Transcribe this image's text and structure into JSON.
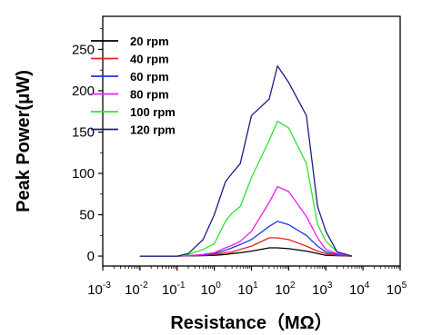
{
  "chart_data": {
    "type": "line",
    "xlabel": "Resistance（MΩ）",
    "ylabel": "Peak Power(μW)",
    "xscale": "log",
    "xlim": [
      0.001,
      100000
    ],
    "ylim": [
      -12,
      290
    ],
    "x_ticks": [
      {
        "base": "10",
        "exp": "-3",
        "value": 0.001
      },
      {
        "base": "10",
        "exp": "-2",
        "value": 0.01
      },
      {
        "base": "10",
        "exp": "-1",
        "value": 0.1
      },
      {
        "base": "10",
        "exp": "0",
        "value": 1
      },
      {
        "base": "10",
        "exp": "1",
        "value": 10
      },
      {
        "base": "10",
        "exp": "2",
        "value": 100
      },
      {
        "base": "10",
        "exp": "3",
        "value": 1000
      },
      {
        "base": "10",
        "exp": "4",
        "value": 10000
      },
      {
        "base": "10",
        "exp": "5",
        "value": 100000
      }
    ],
    "y_ticks": [
      0,
      50,
      100,
      150,
      200,
      250
    ],
    "grid": false,
    "legend_position": "top-left",
    "series": [
      {
        "name": "20 rpm",
        "color": "#000000",
        "x": [
          0.01,
          0.05,
          0.1,
          0.2,
          0.5,
          1,
          2,
          3,
          5,
          10,
          30,
          50,
          100,
          300,
          600,
          1000,
          2000,
          5000
        ],
        "y": [
          0,
          0,
          0,
          0.2,
          0.5,
          1,
          2,
          3,
          4,
          6,
          10,
          10,
          9,
          6,
          3,
          1,
          0.5,
          0
        ]
      },
      {
        "name": "40 rpm",
        "color": "#e8231c",
        "x": [
          0.01,
          0.05,
          0.1,
          0.2,
          0.5,
          1,
          2,
          3,
          5,
          10,
          30,
          50,
          100,
          300,
          600,
          1000,
          2000,
          5000
        ],
        "y": [
          0,
          0,
          0,
          0.5,
          1,
          2,
          4,
          5,
          8,
          12,
          22,
          22,
          20,
          12,
          6,
          3,
          1,
          0
        ]
      },
      {
        "name": "60 rpm",
        "color": "#1a35e6",
        "x": [
          0.01,
          0.05,
          0.1,
          0.2,
          0.5,
          1,
          2,
          3,
          5,
          10,
          30,
          50,
          100,
          300,
          600,
          1000,
          2000,
          5000
        ],
        "y": [
          0,
          0,
          0,
          0.5,
          1.5,
          3,
          7,
          10,
          14,
          20,
          36,
          42,
          38,
          25,
          12,
          5,
          2,
          0
        ]
      },
      {
        "name": "80 rpm",
        "color": "#f01af0",
        "x": [
          0.01,
          0.05,
          0.1,
          0.2,
          0.5,
          1,
          2,
          3,
          5,
          10,
          30,
          50,
          100,
          300,
          600,
          1000,
          2000,
          5000
        ],
        "y": [
          0,
          0,
          0,
          0.5,
          2,
          4,
          10,
          13,
          18,
          30,
          65,
          84,
          78,
          48,
          22,
          8,
          3,
          0
        ]
      },
      {
        "name": "100 rpm",
        "color": "#2be62b",
        "x": [
          0.01,
          0.05,
          0.1,
          0.2,
          0.5,
          1,
          2,
          3,
          5,
          10,
          30,
          50,
          100,
          300,
          600,
          1000,
          2000,
          5000
        ],
        "y": [
          0,
          0,
          0,
          2,
          8,
          15,
          42,
          52,
          60,
          95,
          140,
          163,
          155,
          112,
          38,
          18,
          5,
          0
        ]
      },
      {
        "name": "120 rpm",
        "color": "#1c1c8a",
        "x": [
          0.01,
          0.05,
          0.1,
          0.2,
          0.5,
          1,
          2,
          3,
          5,
          10,
          30,
          50,
          100,
          300,
          600,
          1000,
          2000,
          5000
        ],
        "y": [
          0,
          0,
          0,
          3,
          20,
          50,
          90,
          100,
          112,
          170,
          190,
          230,
          210,
          170,
          60,
          30,
          5,
          0
        ]
      }
    ]
  }
}
